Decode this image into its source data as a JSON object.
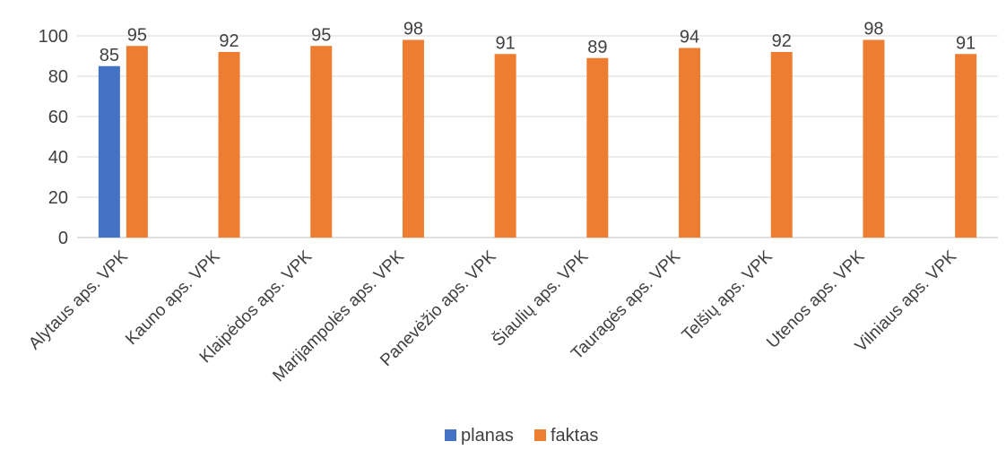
{
  "chart_data": {
    "type": "bar",
    "categories": [
      "Alytaus aps. VPK",
      "Kauno aps. VPK",
      "Klaipėdos aps. VPK",
      "Marijampolės aps. VPK",
      "Panevėžio aps. VPK",
      "Šiaulių aps. VPK",
      "Tauragės aps. VPK",
      "Telšių aps. VPK",
      "Utenos aps. VPK",
      "Vilniaus aps. VPK"
    ],
    "series": [
      {
        "name": "planas",
        "color": "#4472C4",
        "values": [
          85,
          null,
          null,
          null,
          null,
          null,
          null,
          null,
          null,
          null
        ]
      },
      {
        "name": "faktas",
        "color": "#ED7D31",
        "values": [
          95,
          92,
          95,
          98,
          91,
          89,
          94,
          92,
          98,
          91
        ]
      }
    ],
    "ylim": [
      0,
      100
    ],
    "yticks": [
      0,
      20,
      40,
      60,
      80,
      100
    ],
    "grid": true,
    "legend_position": "bottom",
    "title": "",
    "xlabel": "",
    "ylabel": ""
  }
}
